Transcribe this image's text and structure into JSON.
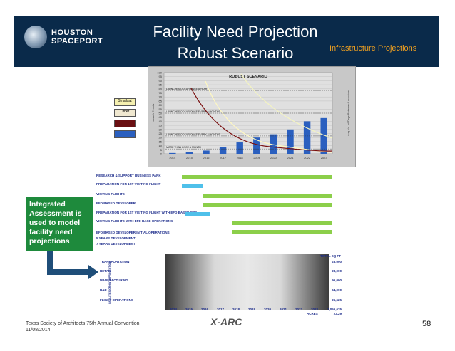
{
  "header": {
    "logo_text": "HOUSTON SPACEPORT",
    "title_line1": "Facility Need Projection",
    "title_line2": "Robust Scenario",
    "section": "Infrastructure Projections"
  },
  "chart_data": {
    "type": "bar",
    "title": "ROBUST SCENARIO",
    "categories": [
      "2014",
      "2015",
      "2016",
      "2017",
      "2018",
      "2019",
      "2020",
      "2021",
      "2022",
      "2023"
    ],
    "ylabel": "Launch Events",
    "y2label": "Avg No. of Days Between Launches",
    "ylim": [
      0,
      100
    ],
    "y2lim": [
      0,
      600
    ],
    "annotations": [
      "LAUNCHES OCCUR ONCE A YEAR",
      "LAUNCHES OCCUR ONCE EVERY 6 MONTHS",
      "LAUNCHES OCCUR ONCE EVERY 3 MONTHS",
      "MORE THAN ONCE A MONTH"
    ],
    "legend": [
      "Smallsat",
      "Other",
      "",
      ""
    ],
    "series": [
      {
        "name": "Bars",
        "values": [
          1,
          2,
          4,
          8,
          14,
          20,
          24,
          30,
          40,
          44
        ]
      }
    ]
  },
  "timeline": {
    "rows": [
      "RESEARCH & SUPPORT BUSINESS PARK",
      "PREPARATION FOR 1ST VISITING FLIGHT",
      "VISITING FLIGHTS",
      "EFD BASED DEVELOPER",
      "PREPARATION FOR 1ST VISITING FLIGHT WITH EFD BASED OPS",
      "VISITING FLIGHTS WITH EFD BASE OPERATIONS",
      "EFD BASED DEVELOPER INITIAL OPERATIONS",
      "5 YEARS DEVELOPMENT",
      "7 YEARS DEVELOPMENT"
    ],
    "years": [
      "2014",
      "2015",
      "2016",
      "2017",
      "2018",
      "2019",
      "2020",
      "2021",
      "2022",
      "2023"
    ]
  },
  "callout": {
    "text": "Integrated Assessment is used to model facility need projections"
  },
  "forecast": {
    "side_label": "FACILITIES GROWTH PROJECTION",
    "rows": [
      {
        "label": "TRANSPORTATION",
        "value": "23,000"
      },
      {
        "label": "RETAIL",
        "value": "28,000"
      },
      {
        "label": "MANUFACTURING",
        "value": "96,000"
      },
      {
        "label": "R&D",
        "value": "64,000"
      },
      {
        "label": "FLIGHT OPERATIONS",
        "value": "26,625"
      }
    ],
    "total_label": "TOTAL SQ FT",
    "total_value": "1,056,625",
    "acres_label": "ACRES",
    "acres_value": "23.29"
  },
  "footer": {
    "line1": "Texas Society of Architects 75th Annual Convention",
    "line2": "11/08/2014",
    "brand": "X-ARC",
    "page": "58"
  }
}
